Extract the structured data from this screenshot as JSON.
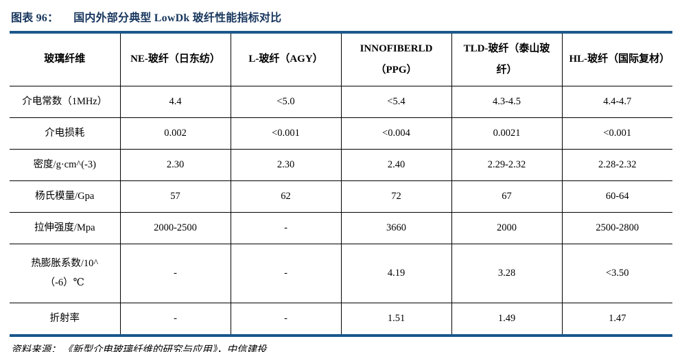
{
  "title": {
    "label": "图表 96：",
    "text": "国内外部分典型 LowDk 玻纤性能指标对比"
  },
  "colors": {
    "accent_rule": "#1A578C",
    "title_text": "#17365D",
    "table_border": "#000000"
  },
  "table": {
    "columns": [
      "玻璃纤维",
      "NE-玻纤（日东纺）",
      "L-玻纤（AGY）",
      "INNOFIBERLD（PPG）",
      "TLD-玻纤（泰山玻纤）",
      "HL-玻纤（国际复材）"
    ],
    "rows": [
      {
        "label": "介电常数（1MHz）",
        "values": [
          "4.4",
          "<5.0",
          "<5.4",
          "4.3-4.5",
          "4.4-4.7"
        ]
      },
      {
        "label": "介电损耗",
        "values": [
          "0.002",
          "<0.001",
          "<0.004",
          "0.0021",
          "<0.001"
        ]
      },
      {
        "label": "密度/g·cm^(-3)",
        "values": [
          "2.30",
          "2.30",
          "2.40",
          "2.29-2.32",
          "2.28-2.32"
        ]
      },
      {
        "label": "杨氏模量/Gpa",
        "values": [
          "57",
          "62",
          "72",
          "67",
          "60-64"
        ]
      },
      {
        "label": "拉伸强度/Mpa",
        "values": [
          "2000-2500",
          "-",
          "3660",
          "2000",
          "2500-2800"
        ]
      },
      {
        "label": "热膨胀系数/10^（-6）℃",
        "values": [
          "-",
          "-",
          "4.19",
          "3.28",
          "<3.50"
        ]
      },
      {
        "label": "折射率",
        "values": [
          "-",
          "-",
          "1.51",
          "1.49",
          "1.47"
        ]
      }
    ]
  },
  "footer": {
    "source_label": "资料来源：",
    "source_text": "《新型介电玻璃纤维的研究与应用》，中信建投"
  }
}
